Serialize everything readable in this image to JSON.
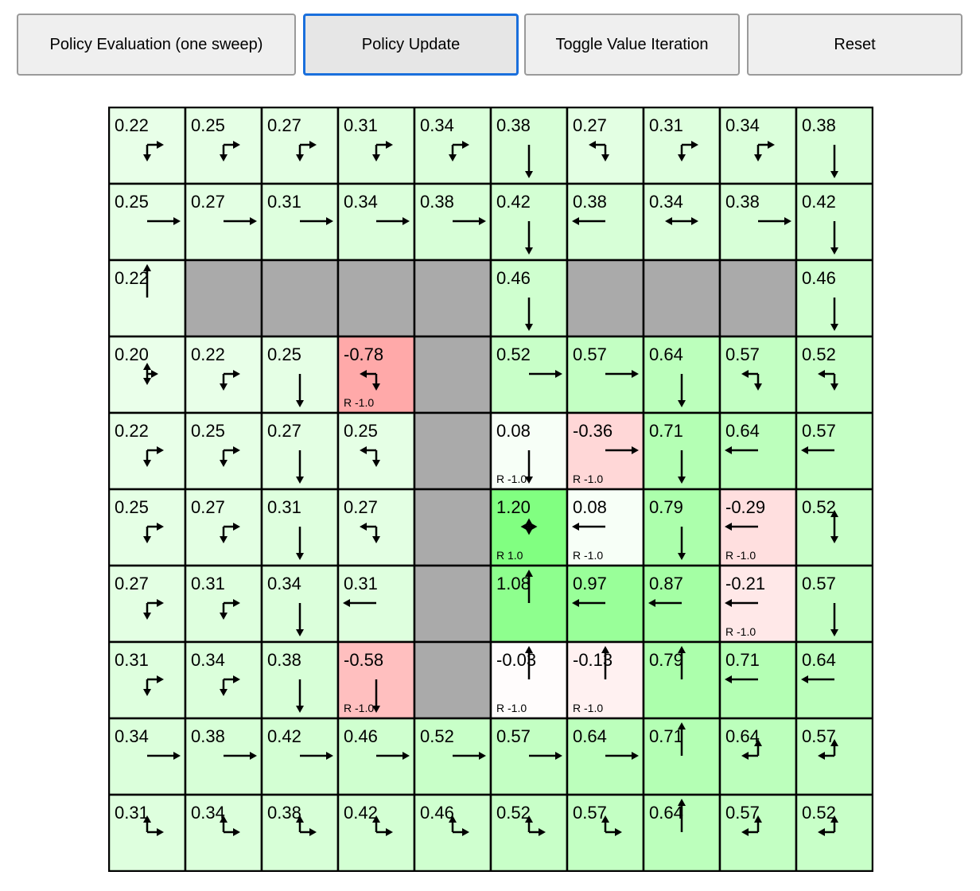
{
  "toolbar": {
    "buttons": [
      {
        "label": "Policy Evaluation (one sweep)"
      },
      {
        "label": "Policy Update",
        "focused": true
      },
      {
        "label": "Toggle Value Iteration"
      },
      {
        "label": "Reset"
      }
    ]
  },
  "colors": {
    "wall": "#aaaaaa",
    "grid_line": "#000000",
    "focus_border": "#1a6fdc"
  },
  "gridworld": {
    "rows": [
      [
        {
          "v": "0.22",
          "a": "rd"
        },
        {
          "v": "0.25",
          "a": "rd"
        },
        {
          "v": "0.27",
          "a": "rd"
        },
        {
          "v": "0.31",
          "a": "rd"
        },
        {
          "v": "0.34",
          "a": "rd"
        },
        {
          "v": "0.38",
          "a": "d"
        },
        {
          "v": "0.27",
          "a": "ld"
        },
        {
          "v": "0.31",
          "a": "rd"
        },
        {
          "v": "0.34",
          "a": "rd"
        },
        {
          "v": "0.38",
          "a": "d"
        }
      ],
      [
        {
          "v": "0.25",
          "a": "r"
        },
        {
          "v": "0.27",
          "a": "r"
        },
        {
          "v": "0.31",
          "a": "r"
        },
        {
          "v": "0.34",
          "a": "r"
        },
        {
          "v": "0.38",
          "a": "r"
        },
        {
          "v": "0.42",
          "a": "d"
        },
        {
          "v": "0.38",
          "a": "l"
        },
        {
          "v": "0.34",
          "a": "lr"
        },
        {
          "v": "0.38",
          "a": "r"
        },
        {
          "v": "0.42",
          "a": "d"
        }
      ],
      [
        {
          "v": "0.22",
          "a": "u"
        },
        {
          "wall": true
        },
        {
          "wall": true
        },
        {
          "wall": true
        },
        {
          "wall": true
        },
        {
          "v": "0.46",
          "a": "d"
        },
        {
          "wall": true
        },
        {
          "wall": true
        },
        {
          "wall": true
        },
        {
          "v": "0.46",
          "a": "d"
        }
      ],
      [
        {
          "v": "0.20",
          "a": "udr"
        },
        {
          "v": "0.22",
          "a": "rd"
        },
        {
          "v": "0.25",
          "a": "d"
        },
        {
          "v": "-0.78",
          "a": "ld",
          "r": "R -1.0"
        },
        {
          "wall": true
        },
        {
          "v": "0.52",
          "a": "r"
        },
        {
          "v": "0.57",
          "a": "r"
        },
        {
          "v": "0.64",
          "a": "d"
        },
        {
          "v": "0.57",
          "a": "ld"
        },
        {
          "v": "0.52",
          "a": "ld"
        }
      ],
      [
        {
          "v": "0.22",
          "a": "rd"
        },
        {
          "v": "0.25",
          "a": "rd"
        },
        {
          "v": "0.27",
          "a": "d"
        },
        {
          "v": "0.25",
          "a": "ld"
        },
        {
          "wall": true
        },
        {
          "v": "0.08",
          "a": "d",
          "r": "R -1.0"
        },
        {
          "v": "-0.36",
          "a": "r",
          "r": "R -1.0"
        },
        {
          "v": "0.71",
          "a": "d"
        },
        {
          "v": "0.64",
          "a": "l"
        },
        {
          "v": "0.57",
          "a": "l"
        }
      ],
      [
        {
          "v": "0.25",
          "a": "rd"
        },
        {
          "v": "0.27",
          "a": "rd"
        },
        {
          "v": "0.31",
          "a": "d"
        },
        {
          "v": "0.27",
          "a": "ld"
        },
        {
          "wall": true
        },
        {
          "v": "1.20",
          "a": "udlr",
          "r": "R 1.0"
        },
        {
          "v": "0.08",
          "a": "l",
          "r": "R -1.0"
        },
        {
          "v": "0.79",
          "a": "d"
        },
        {
          "v": "-0.29",
          "a": "l",
          "r": "R -1.0"
        },
        {
          "v": "0.52",
          "a": "ud"
        }
      ],
      [
        {
          "v": "0.27",
          "a": "rd"
        },
        {
          "v": "0.31",
          "a": "rd"
        },
        {
          "v": "0.34",
          "a": "d"
        },
        {
          "v": "0.31",
          "a": "l"
        },
        {
          "wall": true
        },
        {
          "v": "1.08",
          "a": "u"
        },
        {
          "v": "0.97",
          "a": "l"
        },
        {
          "v": "0.87",
          "a": "l"
        },
        {
          "v": "-0.21",
          "a": "l",
          "r": "R -1.0"
        },
        {
          "v": "0.57",
          "a": "d"
        }
      ],
      [
        {
          "v": "0.31",
          "a": "rd"
        },
        {
          "v": "0.34",
          "a": "rd"
        },
        {
          "v": "0.38",
          "a": "d"
        },
        {
          "v": "-0.58",
          "a": "d",
          "r": "R -1.0"
        },
        {
          "wall": true
        },
        {
          "v": "-0.03",
          "a": "u",
          "r": "R -1.0"
        },
        {
          "v": "-0.13",
          "a": "u",
          "r": "R -1.0"
        },
        {
          "v": "0.79",
          "a": "u"
        },
        {
          "v": "0.71",
          "a": "l"
        },
        {
          "v": "0.64",
          "a": "l"
        }
      ],
      [
        {
          "v": "0.34",
          "a": "r"
        },
        {
          "v": "0.38",
          "a": "r"
        },
        {
          "v": "0.42",
          "a": "r"
        },
        {
          "v": "0.46",
          "a": "r"
        },
        {
          "v": "0.52",
          "a": "r"
        },
        {
          "v": "0.57",
          "a": "r"
        },
        {
          "v": "0.64",
          "a": "r"
        },
        {
          "v": "0.71",
          "a": "u"
        },
        {
          "v": "0.64",
          "a": "ul"
        },
        {
          "v": "0.57",
          "a": "ul"
        }
      ],
      [
        {
          "v": "0.31",
          "a": "ur"
        },
        {
          "v": "0.34",
          "a": "ur"
        },
        {
          "v": "0.38",
          "a": "ur"
        },
        {
          "v": "0.42",
          "a": "ur"
        },
        {
          "v": "0.46",
          "a": "ur"
        },
        {
          "v": "0.52",
          "a": "ur"
        },
        {
          "v": "0.57",
          "a": "ur"
        },
        {
          "v": "0.64",
          "a": "u"
        },
        {
          "v": "0.57",
          "a": "ul"
        },
        {
          "v": "0.52",
          "a": "ul"
        }
      ]
    ]
  }
}
